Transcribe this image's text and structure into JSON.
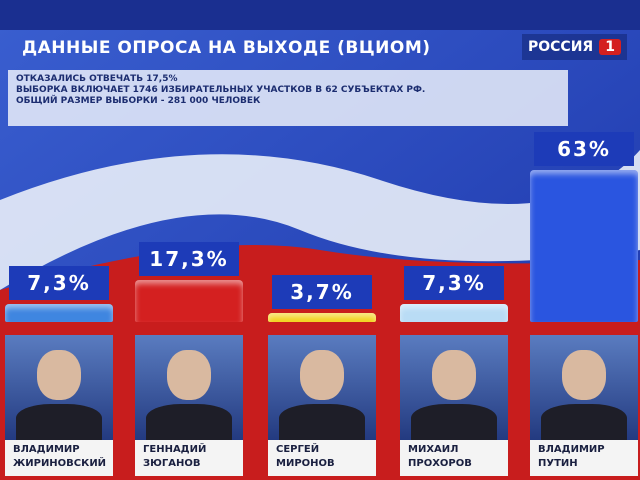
{
  "chart_data": {
    "type": "bar",
    "title": "ДАННЫЕ ОПРОСА НА ВЫХОДЕ (ВЦИОМ)",
    "notes": [
      "ОТКАЗАЛИСЬ ОТВЕЧАТЬ 17,5%",
      "ВЫБОРКА ВКЛЮЧАЕТ 1746 ИЗБИРАТЕЛЬНЫХ УЧАСТКОВ В 62 СУБЪЕКТАХ РФ.",
      "ОБЩИЙ РАЗМЕР ВЫБОРКИ - 281 000 ЧЕЛОВЕК"
    ],
    "logo": {
      "text": "РОССИЯ",
      "number": "1"
    },
    "categories": [
      "ВЛАДИМИР ЖИРИНОВСКИЙ",
      "ГЕННАДИЙ ЗЮГАНОВ",
      "СЕРГЕЙ МИРОНОВ",
      "МИХАИЛ ПРОХОРОВ",
      "ВЛАДИМИР ПУТИН"
    ],
    "values": [
      7.3,
      17.3,
      3.7,
      7.3,
      63
    ],
    "value_labels": [
      "7,3%",
      "17,3%",
      "3,7%",
      "7,3%",
      "63%"
    ],
    "colors": [
      "#3f86e0",
      "#d42020",
      "#f2d21a",
      "#b9dcf5",
      "#2a55e0"
    ]
  }
}
